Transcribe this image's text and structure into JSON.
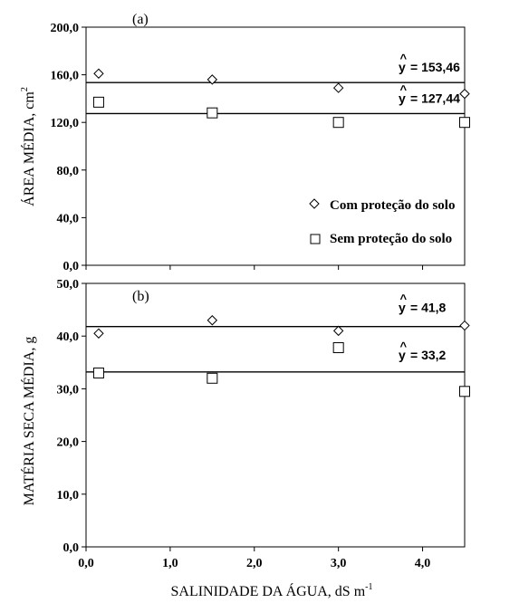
{
  "chart_data": [
    {
      "type": "scatter",
      "panel_label": "(a)",
      "ylabel": "ÁREA MÉDIA, cm",
      "ylabel_sup": "2",
      "ylim": [
        0,
        200
      ],
      "yticks": [
        0,
        40,
        80,
        120,
        160,
        200
      ],
      "ytick_labels": [
        "0,0",
        "40,0",
        "80,0",
        "120,0",
        "160,0",
        "200,0"
      ],
      "xlim": [
        0,
        4.5
      ],
      "series": [
        {
          "name": "Com proteção do solo",
          "marker": "diamond",
          "x": [
            0.15,
            1.5,
            3.0,
            4.5
          ],
          "y": [
            161,
            156,
            149,
            144
          ]
        },
        {
          "name": "Sem proteção do solo",
          "marker": "square",
          "x": [
            0.15,
            1.5,
            3.0,
            4.5
          ],
          "y": [
            137,
            128,
            120,
            120
          ]
        }
      ],
      "fit_lines": [
        {
          "value": 153.46,
          "label": "= 153,46"
        },
        {
          "value": 127.44,
          "label": "= 127,44"
        }
      ],
      "legend": {
        "position": "bottom-right"
      }
    },
    {
      "type": "scatter",
      "panel_label": "(b)",
      "ylabel": "MATÉRIA SECA MÉDIA, g",
      "ylim": [
        0,
        50
      ],
      "yticks": [
        0,
        10,
        20,
        30,
        40,
        50
      ],
      "ytick_labels": [
        "0,0",
        "10,0",
        "20,0",
        "30,0",
        "40,0",
        "50,0"
      ],
      "xlim": [
        0,
        4.5
      ],
      "xticks": [
        0,
        1,
        2,
        3,
        4
      ],
      "xtick_labels": [
        "0,0",
        "1,0",
        "2,0",
        "3,0",
        "4,0"
      ],
      "xlabel": "SALINIDADE DA ÁGUA, dS m",
      "xlabel_sup": "-1",
      "series": [
        {
          "name": "Com proteção do solo",
          "marker": "diamond",
          "x": [
            0.15,
            1.5,
            3.0,
            4.5
          ],
          "y": [
            40.5,
            43.0,
            41.0,
            42.0
          ]
        },
        {
          "name": "Sem proteção do solo",
          "marker": "square",
          "x": [
            0.15,
            1.5,
            3.0,
            4.5
          ],
          "y": [
            33.0,
            32.0,
            37.8,
            29.5
          ]
        }
      ],
      "fit_lines": [
        {
          "value": 41.8,
          "label": "= 41,8"
        },
        {
          "value": 33.2,
          "label": "= 33,2"
        }
      ]
    }
  ],
  "equation_symbol": "y"
}
